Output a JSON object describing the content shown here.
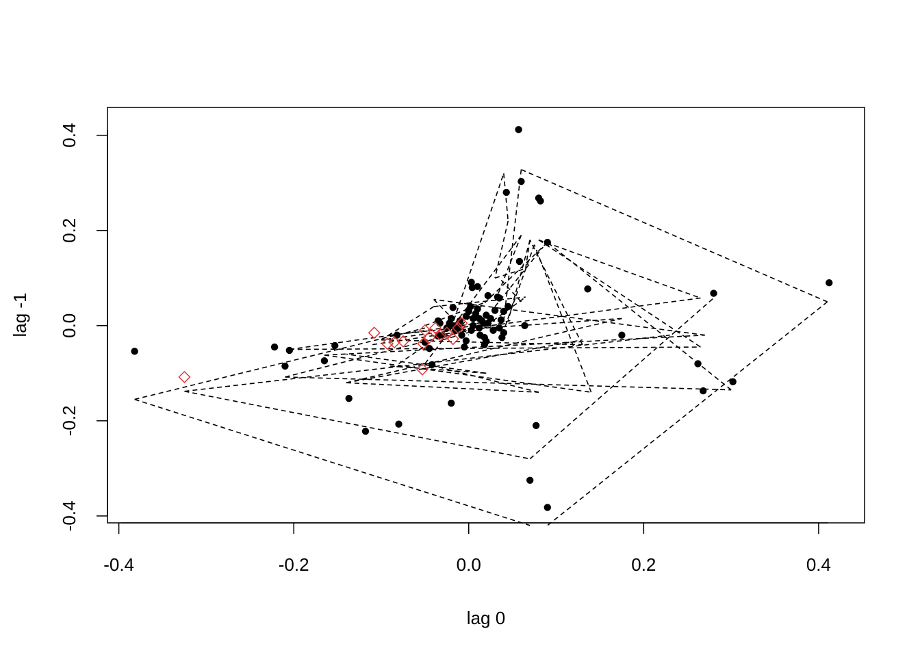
{
  "chart_data": {
    "type": "scatter",
    "title": "",
    "xlabel": "lag 0",
    "ylabel": "lag -1",
    "xlim": [
      -0.413,
      0.4525
    ],
    "ylim": [
      -0.4145,
      0.4585
    ],
    "x_ticks": [
      -0.4,
      -0.2,
      0.0,
      0.2,
      0.4
    ],
    "x_tick_labels": [
      "-0.4",
      "-0.2",
      "0.0",
      "0.2",
      "0.4"
    ],
    "y_ticks": [
      -0.4,
      -0.2,
      0.0,
      0.2,
      0.4
    ],
    "y_tick_labels": [
      "-0.4",
      "-0.2",
      "0.0",
      "0.2",
      "0.4"
    ],
    "grid": false,
    "legend": "none",
    "colors": {
      "points": "#000000",
      "highlight": "#DF3A36",
      "lines": "#000000"
    },
    "series": [
      {
        "marker": "filled-circle",
        "color": "#000000",
        "points": [
          [
            -0.382,
            -0.054
          ],
          [
            -0.222,
            -0.045
          ],
          [
            -0.21,
            -0.085
          ],
          [
            -0.205,
            -0.052
          ],
          [
            -0.165,
            -0.074
          ],
          [
            -0.153,
            -0.042
          ],
          [
            -0.137,
            -0.153
          ],
          [
            -0.118,
            -0.222
          ],
          [
            -0.082,
            -0.02
          ],
          [
            -0.08,
            -0.207
          ],
          [
            -0.05,
            -0.035
          ],
          [
            -0.045,
            -0.048
          ],
          [
            -0.042,
            -0.082
          ],
          [
            -0.035,
            -0.022
          ],
          [
            -0.033,
            0.005
          ],
          [
            -0.03,
            -0.02
          ],
          [
            -0.025,
            -0.005
          ],
          [
            -0.02,
            0.015
          ],
          [
            -0.018,
            0.038
          ],
          [
            -0.018,
            0.0
          ],
          [
            -0.015,
            -0.01
          ],
          [
            -0.012,
            -0.005
          ],
          [
            -0.01,
            0.01
          ],
          [
            -0.008,
            -0.02
          ],
          [
            -0.005,
            -0.045
          ],
          [
            -0.003,
            0.02
          ],
          [
            0.0,
            0.03
          ],
          [
            0.002,
            0.04
          ],
          [
            0.003,
            -0.01
          ],
          [
            0.005,
            0.0
          ],
          [
            0.005,
            0.015
          ],
          [
            0.008,
            0.025
          ],
          [
            0.01,
            0.035
          ],
          [
            0.012,
            -0.005
          ],
          [
            0.013,
            -0.02
          ],
          [
            0.015,
            0.01
          ],
          [
            0.017,
            0.005
          ],
          [
            0.018,
            -0.025
          ],
          [
            0.02,
            0.022
          ],
          [
            0.022,
            0.005
          ],
          [
            0.025,
            0.015
          ],
          [
            0.028,
            -0.01
          ],
          [
            0.03,
            0.032
          ],
          [
            0.033,
            0.06
          ],
          [
            0.035,
            -0.005
          ],
          [
            0.037,
            0.012
          ],
          [
            0.04,
            0.03
          ],
          [
            0.04,
            -0.015
          ],
          [
            0.02,
            -0.033
          ],
          [
            0.035,
            0.058
          ],
          [
            0.022,
            0.063
          ],
          [
            0.01,
            0.082
          ],
          [
            0.004,
            0.08
          ],
          [
            0.003,
            0.091
          ],
          [
            0.012,
            0.015
          ],
          [
            0.018,
            -0.04
          ],
          [
            -0.003,
            -0.032
          ],
          [
            0.038,
            -0.025
          ],
          [
            0.045,
            0.04
          ],
          [
            -0.022,
            0.005
          ],
          [
            -0.035,
            0.01
          ],
          [
            0.043,
            0.28
          ],
          [
            0.057,
            0.412
          ],
          [
            0.06,
            0.303
          ],
          [
            0.08,
            0.268
          ],
          [
            0.082,
            0.262
          ],
          [
            0.058,
            0.135
          ],
          [
            0.09,
            0.175
          ],
          [
            0.136,
            0.077
          ],
          [
            0.064,
            0.0
          ],
          [
            0.175,
            -0.02
          ],
          [
            0.28,
            0.068
          ],
          [
            0.262,
            -0.08
          ],
          [
            0.268,
            -0.137
          ],
          [
            0.302,
            -0.118
          ],
          [
            0.412,
            0.09
          ],
          [
            0.077,
            -0.21
          ],
          [
            -0.02,
            -0.163
          ],
          [
            0.07,
            -0.325
          ],
          [
            0.09,
            -0.382
          ]
        ]
      },
      {
        "marker": "open-diamond",
        "color": "#DF3A36",
        "points": [
          [
            -0.325,
            -0.108
          ],
          [
            -0.108,
            -0.015
          ],
          [
            -0.093,
            -0.038
          ],
          [
            -0.085,
            -0.035
          ],
          [
            -0.075,
            -0.033
          ],
          [
            -0.053,
            -0.092
          ],
          [
            -0.052,
            -0.038
          ],
          [
            -0.05,
            -0.01
          ],
          [
            -0.045,
            -0.025
          ],
          [
            -0.038,
            -0.005
          ],
          [
            -0.032,
            -0.02
          ],
          [
            -0.025,
            -0.015
          ],
          [
            -0.018,
            -0.028
          ],
          [
            -0.012,
            -0.005
          ],
          [
            -0.008,
            0.005
          ]
        ]
      }
    ],
    "line_segments": [
      [
        [
          -0.382,
          -0.155
        ],
        [
          0.07,
          -0.42
        ]
      ],
      [
        [
          -0.382,
          -0.155
        ],
        [
          -0.05,
          -0.005
        ]
      ],
      [
        [
          -0.325,
          -0.138
        ],
        [
          0.07,
          -0.28
        ]
      ],
      [
        [
          0.07,
          -0.28
        ],
        [
          0.28,
          0.058
        ]
      ],
      [
        [
          0.41,
          0.05
        ],
        [
          0.09,
          -0.42
        ]
      ],
      [
        [
          0.41,
          0.05
        ],
        [
          0.06,
          0.328
        ]
      ],
      [
        [
          0.06,
          0.328
        ],
        [
          0.04,
          0.01
        ]
      ],
      [
        [
          -0.325,
          -0.138
        ],
        [
          0.23,
          -0.02
        ]
      ],
      [
        [
          -0.205,
          -0.05
        ],
        [
          0.265,
          -0.045
        ]
      ],
      [
        [
          -0.205,
          -0.05
        ],
        [
          0.03,
          0.01
        ]
      ],
      [
        [
          -0.21,
          -0.108
        ],
        [
          0.0,
          -0.01
        ]
      ],
      [
        [
          -0.21,
          -0.108
        ],
        [
          0.3,
          -0.135
        ]
      ],
      [
        [
          0.3,
          -0.135
        ],
        [
          0.09,
          0.175
        ]
      ],
      [
        [
          0.09,
          0.175
        ],
        [
          -0.02,
          -0.02
        ]
      ],
      [
        [
          0.08,
          0.18
        ],
        [
          0.265,
          -0.045
        ]
      ],
      [
        [
          0.08,
          0.18
        ],
        [
          0.265,
          0.058
        ]
      ],
      [
        [
          0.265,
          0.058
        ],
        [
          -0.1,
          -0.03
        ]
      ],
      [
        [
          -0.1,
          -0.03
        ],
        [
          0.13,
          -0.04
        ]
      ],
      [
        [
          0.13,
          -0.04
        ],
        [
          0.07,
          0.18
        ]
      ],
      [
        [
          0.07,
          0.18
        ],
        [
          0.045,
          0.01
        ]
      ],
      [
        [
          -0.165,
          -0.062
        ],
        [
          0.14,
          -0.14
        ]
      ],
      [
        [
          0.14,
          -0.14
        ],
        [
          0.075,
          0.17
        ]
      ],
      [
        [
          0.075,
          0.17
        ],
        [
          0.04,
          -0.01
        ]
      ],
      [
        [
          -0.165,
          -0.062
        ],
        [
          0.27,
          -0.02
        ]
      ],
      [
        [
          0.27,
          -0.02
        ],
        [
          -0.04,
          0.055
        ]
      ],
      [
        [
          -0.04,
          0.055
        ],
        [
          0.0,
          -0.02
        ]
      ],
      [
        [
          -0.14,
          -0.12
        ],
        [
          0.13,
          -0.03
        ]
      ],
      [
        [
          -0.14,
          -0.12
        ],
        [
          0.175,
          0.015
        ]
      ],
      [
        [
          0.175,
          0.015
        ],
        [
          -0.02,
          -0.01
        ]
      ],
      [
        [
          -0.14,
          -0.12
        ],
        [
          0.08,
          -0.14
        ]
      ],
      [
        [
          0.08,
          -0.14
        ],
        [
          -0.05,
          -0.08
        ]
      ],
      [
        [
          -0.05,
          -0.08
        ],
        [
          0.06,
          0.19
        ]
      ],
      [
        [
          0.06,
          0.19
        ],
        [
          0.03,
          0.05
        ]
      ],
      [
        [
          -0.02,
          -0.005
        ],
        [
          0.04,
          0.32
        ]
      ],
      [
        [
          0.04,
          0.32
        ],
        [
          0.045,
          0.22
        ]
      ],
      [
        [
          0.045,
          0.22
        ],
        [
          0.03,
          0.1
        ]
      ],
      [
        [
          0.03,
          0.1
        ],
        [
          0.065,
          0.12
        ]
      ],
      [
        [
          0.065,
          0.12
        ],
        [
          0.07,
          0.18
        ]
      ],
      [
        [
          -0.1,
          -0.03
        ],
        [
          -0.04,
          0.04
        ]
      ],
      [
        [
          -0.04,
          0.04
        ],
        [
          0.065,
          0.06
        ]
      ],
      [
        [
          -0.03,
          -0.03
        ],
        [
          0.05,
          0.012
        ]
      ],
      [
        [
          -0.05,
          0.0
        ],
        [
          0.02,
          0.05
        ]
      ],
      [
        [
          -0.11,
          -0.04
        ],
        [
          0.0,
          -0.01
        ]
      ],
      [
        [
          -0.09,
          -0.02
        ],
        [
          0.01,
          0.0
        ]
      ],
      [
        [
          0.02,
          0.0
        ],
        [
          0.065,
          0.06
        ]
      ],
      [
        [
          -0.09,
          -0.085
        ],
        [
          0.02,
          -0.1
        ]
      ],
      [
        [
          0.02,
          -0.1
        ],
        [
          -0.14,
          -0.06
        ]
      ],
      [
        [
          0.03,
          0.04
        ],
        [
          0.085,
          0.165
        ]
      ],
      [
        [
          -0.08,
          -0.08
        ],
        [
          -0.04,
          -0.03
        ]
      ],
      [
        [
          0.06,
          0.05
        ],
        [
          0.035,
          0.1
        ]
      ]
    ]
  }
}
